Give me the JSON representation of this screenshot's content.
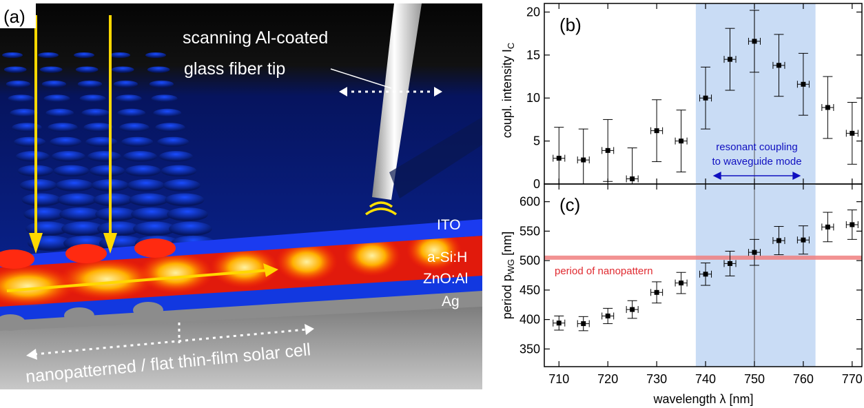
{
  "figure": {
    "panel_a": {
      "label": "(a)",
      "tip_label_line1": "scanning Al-coated",
      "tip_label_line2": "glass fiber tip",
      "layers": [
        "ITO",
        "a-Si:H",
        "ZnO:Al",
        "Ag"
      ],
      "bottom_label": "nanopatterned / flat thin-film solar cell"
    }
  },
  "chart_data": [
    {
      "type": "scatter",
      "panel_label": "(b)",
      "xlabel": "wavelength λ [nm]",
      "ylabel": "coupl. intensity I",
      "ylabel_sub": "C",
      "xlim": [
        707,
        772
      ],
      "ylim": [
        0,
        21
      ],
      "xticks": [
        710,
        720,
        730,
        740,
        750,
        760,
        770
      ],
      "yticks": [
        0,
        5,
        10,
        15,
        20
      ],
      "highlight_band": [
        738,
        762.5
      ],
      "vline": 750,
      "annotation_line1": "resonant coupling",
      "annotation_line2": "to waveguide mode",
      "annotation_arrow_range": [
        741.5,
        759.5
      ],
      "x": [
        710,
        715,
        720,
        725,
        730,
        735,
        740,
        745,
        750,
        755,
        760,
        765,
        770
      ],
      "y": [
        3.0,
        2.8,
        3.9,
        0.6,
        6.2,
        5.0,
        10.0,
        14.5,
        16.6,
        13.8,
        11.6,
        8.9,
        5.9
      ],
      "y_err_low": [
        3.0,
        2.8,
        3.6,
        0.6,
        3.6,
        3.6,
        3.6,
        3.6,
        3.6,
        3.6,
        3.6,
        3.6,
        3.6
      ],
      "y_err_high": [
        3.6,
        3.6,
        3.6,
        3.6,
        3.6,
        3.6,
        3.6,
        3.6,
        3.6,
        3.6,
        3.6,
        3.6,
        3.6
      ],
      "x_err": 1.2
    },
    {
      "type": "scatter",
      "panel_label": "(c)",
      "xlabel": "wavelength λ [nm]",
      "ylabel": "period p",
      "ylabel_sub": "WG",
      "ylabel_unit": " [nm]",
      "xlim": [
        707,
        772
      ],
      "ylim": [
        320,
        630
      ],
      "xticks": [
        710,
        720,
        730,
        740,
        750,
        760,
        770
      ],
      "yticks": [
        350,
        400,
        450,
        500,
        550,
        600
      ],
      "highlight_band": [
        738,
        762.5
      ],
      "vline": 750,
      "reference_line": 505,
      "reference_label": "period of nanopattern",
      "x": [
        710,
        715,
        720,
        725,
        730,
        735,
        740,
        745,
        750,
        755,
        760,
        765,
        770
      ],
      "y": [
        394,
        393,
        406,
        417,
        446,
        462,
        477,
        495,
        514,
        534,
        535,
        557,
        561
      ],
      "y_err": [
        12,
        12,
        13,
        15,
        18,
        18,
        19,
        21,
        22,
        24,
        24,
        25,
        25
      ],
      "x_err": 1.2
    }
  ],
  "colors": {
    "band": "#c9dcf5",
    "refline": "#f08080",
    "annotation_blue": "#1010c0",
    "annotation_red": "#e02a30",
    "yellow": "#ffd800",
    "device_blue": "#0a1f8e"
  }
}
